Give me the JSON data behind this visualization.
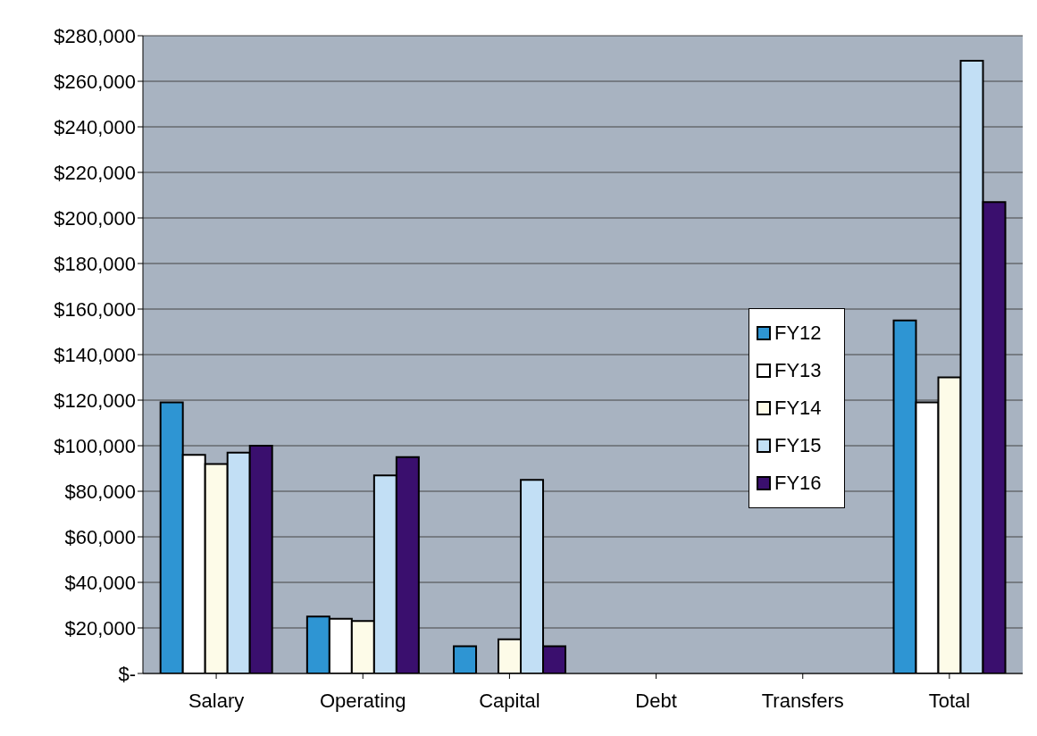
{
  "chart_data": {
    "type": "bar",
    "categories": [
      "Salary",
      "Operating",
      "Capital",
      "Debt",
      "Transfers",
      "Total"
    ],
    "series": [
      {
        "name": "FY12",
        "color": "#2e95d3",
        "values": [
          119000,
          25000,
          12000,
          0,
          0,
          155000
        ]
      },
      {
        "name": "FY13",
        "color": "#ffffff",
        "values": [
          96000,
          24000,
          0,
          0,
          0,
          119000
        ]
      },
      {
        "name": "FY14",
        "color": "#fdfbe8",
        "values": [
          92000,
          23000,
          15000,
          0,
          0,
          130000
        ]
      },
      {
        "name": "FY15",
        "color": "#c2dff5",
        "values": [
          97000,
          87000,
          85000,
          0,
          0,
          269000
        ]
      },
      {
        "name": "FY16",
        "color": "#3a0f6e",
        "values": [
          100000,
          95000,
          12000,
          0,
          0,
          207000
        ]
      }
    ],
    "ylim": [
      0,
      280000
    ],
    "yticks": [
      {
        "value": 0,
        "label": "$-"
      },
      {
        "value": 20000,
        "label": "$20,000"
      },
      {
        "value": 40000,
        "label": "$40,000"
      },
      {
        "value": 60000,
        "label": "$60,000"
      },
      {
        "value": 80000,
        "label": "$80,000"
      },
      {
        "value": 100000,
        "label": "$100,000"
      },
      {
        "value": 120000,
        "label": "$120,000"
      },
      {
        "value": 140000,
        "label": "$140,000"
      },
      {
        "value": 160000,
        "label": "$160,000"
      },
      {
        "value": 180000,
        "label": "$180,000"
      },
      {
        "value": 200000,
        "label": "$200,000"
      },
      {
        "value": 220000,
        "label": "$220,000"
      },
      {
        "value": 240000,
        "label": "$240,000"
      },
      {
        "value": 260000,
        "label": "$260,000"
      },
      {
        "value": 280000,
        "label": "$280,000"
      }
    ],
    "grid": "y",
    "legend": "right"
  }
}
